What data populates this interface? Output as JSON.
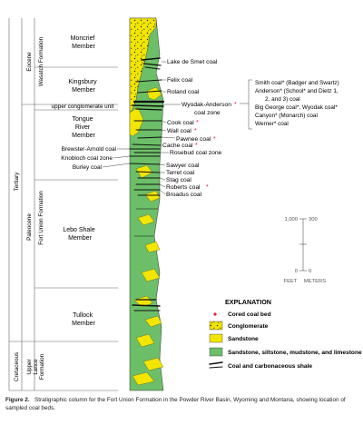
{
  "colors": {
    "green": "#6cbf68",
    "yellow": "#f2e600",
    "coal": "#111111",
    "red": "#e0202a",
    "line": "#555555"
  },
  "column": {
    "period": "Tertiary",
    "epochs": [
      "Eocene",
      "Paleocene"
    ],
    "formations": [
      "Wasatch Formation",
      "Fort Union Formation"
    ],
    "lower_period": "Cretaceous",
    "lower_formation": [
      "Upper",
      "Lance",
      "Formation"
    ],
    "members": {
      "moncrief": [
        "Moncrief",
        "Member"
      ],
      "kingsbury": [
        "Kingsbury",
        "Member"
      ],
      "upper_conglomerate": "upper conglomerate unit",
      "tongue_river": [
        "Tongue",
        "River",
        "Member"
      ],
      "lebo": [
        "Lebo Shale",
        "Member"
      ],
      "tullock": [
        "Tullock",
        "Member"
      ]
    },
    "left_coals": [
      "Brewster-Arnold coal",
      "Knobloch coal zone",
      "Burley coal"
    ]
  },
  "right_coals": [
    {
      "label": "Lake de Smet coal",
      "cored": false
    },
    {
      "label": "Felix coal",
      "cored": false
    },
    {
      "label": "Roland coal",
      "cored": false
    },
    {
      "label": "Wyodak-Anderson",
      "cored": true
    },
    {
      "label": "coal zone",
      "cored": false
    },
    {
      "label": "Cook coal",
      "cored": true
    },
    {
      "label": "Wall coal",
      "cored": true
    },
    {
      "label": "Pawnee coal",
      "cored": true
    },
    {
      "label": "Cache coal",
      "cored": true
    },
    {
      "label": "Rosebud coal zone",
      "cored": false
    },
    {
      "label": "Sawyer coal",
      "cored": false
    },
    {
      "label": "Terret coal",
      "cored": false
    },
    {
      "label": "Stag coal",
      "cored": false
    },
    {
      "label": "Roberts coal",
      "cored": true
    },
    {
      "label": "Broadus coal",
      "cored": false
    }
  ],
  "wyodak_list": [
    "Smith coal* (Badger and Swartz)",
    "Anderson* (School* and Dietz 1,",
    "2, and 3) coal",
    "Big George coal*, Wyodak coal*",
    "Canyon* (Monarch) coal",
    "Werner* coal"
  ],
  "scale": {
    "feet_top": "1,000",
    "meters_top": "300",
    "feet_bottom": "0",
    "meters_bottom": "0",
    "feet_label": "FEET",
    "meters_label": "METERS"
  },
  "legend": {
    "title": "EXPLANATION",
    "items": [
      {
        "label": "Cored coal bed",
        "symbol": "red-dot"
      },
      {
        "label": "Conglomerate",
        "symbol": "conglomerate"
      },
      {
        "label": "Sandstone",
        "symbol": "sandstone"
      },
      {
        "label": "Sandstone, siltstone, mudstone, and limestone",
        "symbol": "green"
      },
      {
        "label": "Coal and carbonaceous shale",
        "symbol": "coal"
      }
    ]
  },
  "caption": {
    "label": "Figure 2.",
    "text": "Stratigraphic column for the Fort Union Formation in the Powder River Basin, Wyoming and Montana, showing location of sampled coal beds."
  }
}
